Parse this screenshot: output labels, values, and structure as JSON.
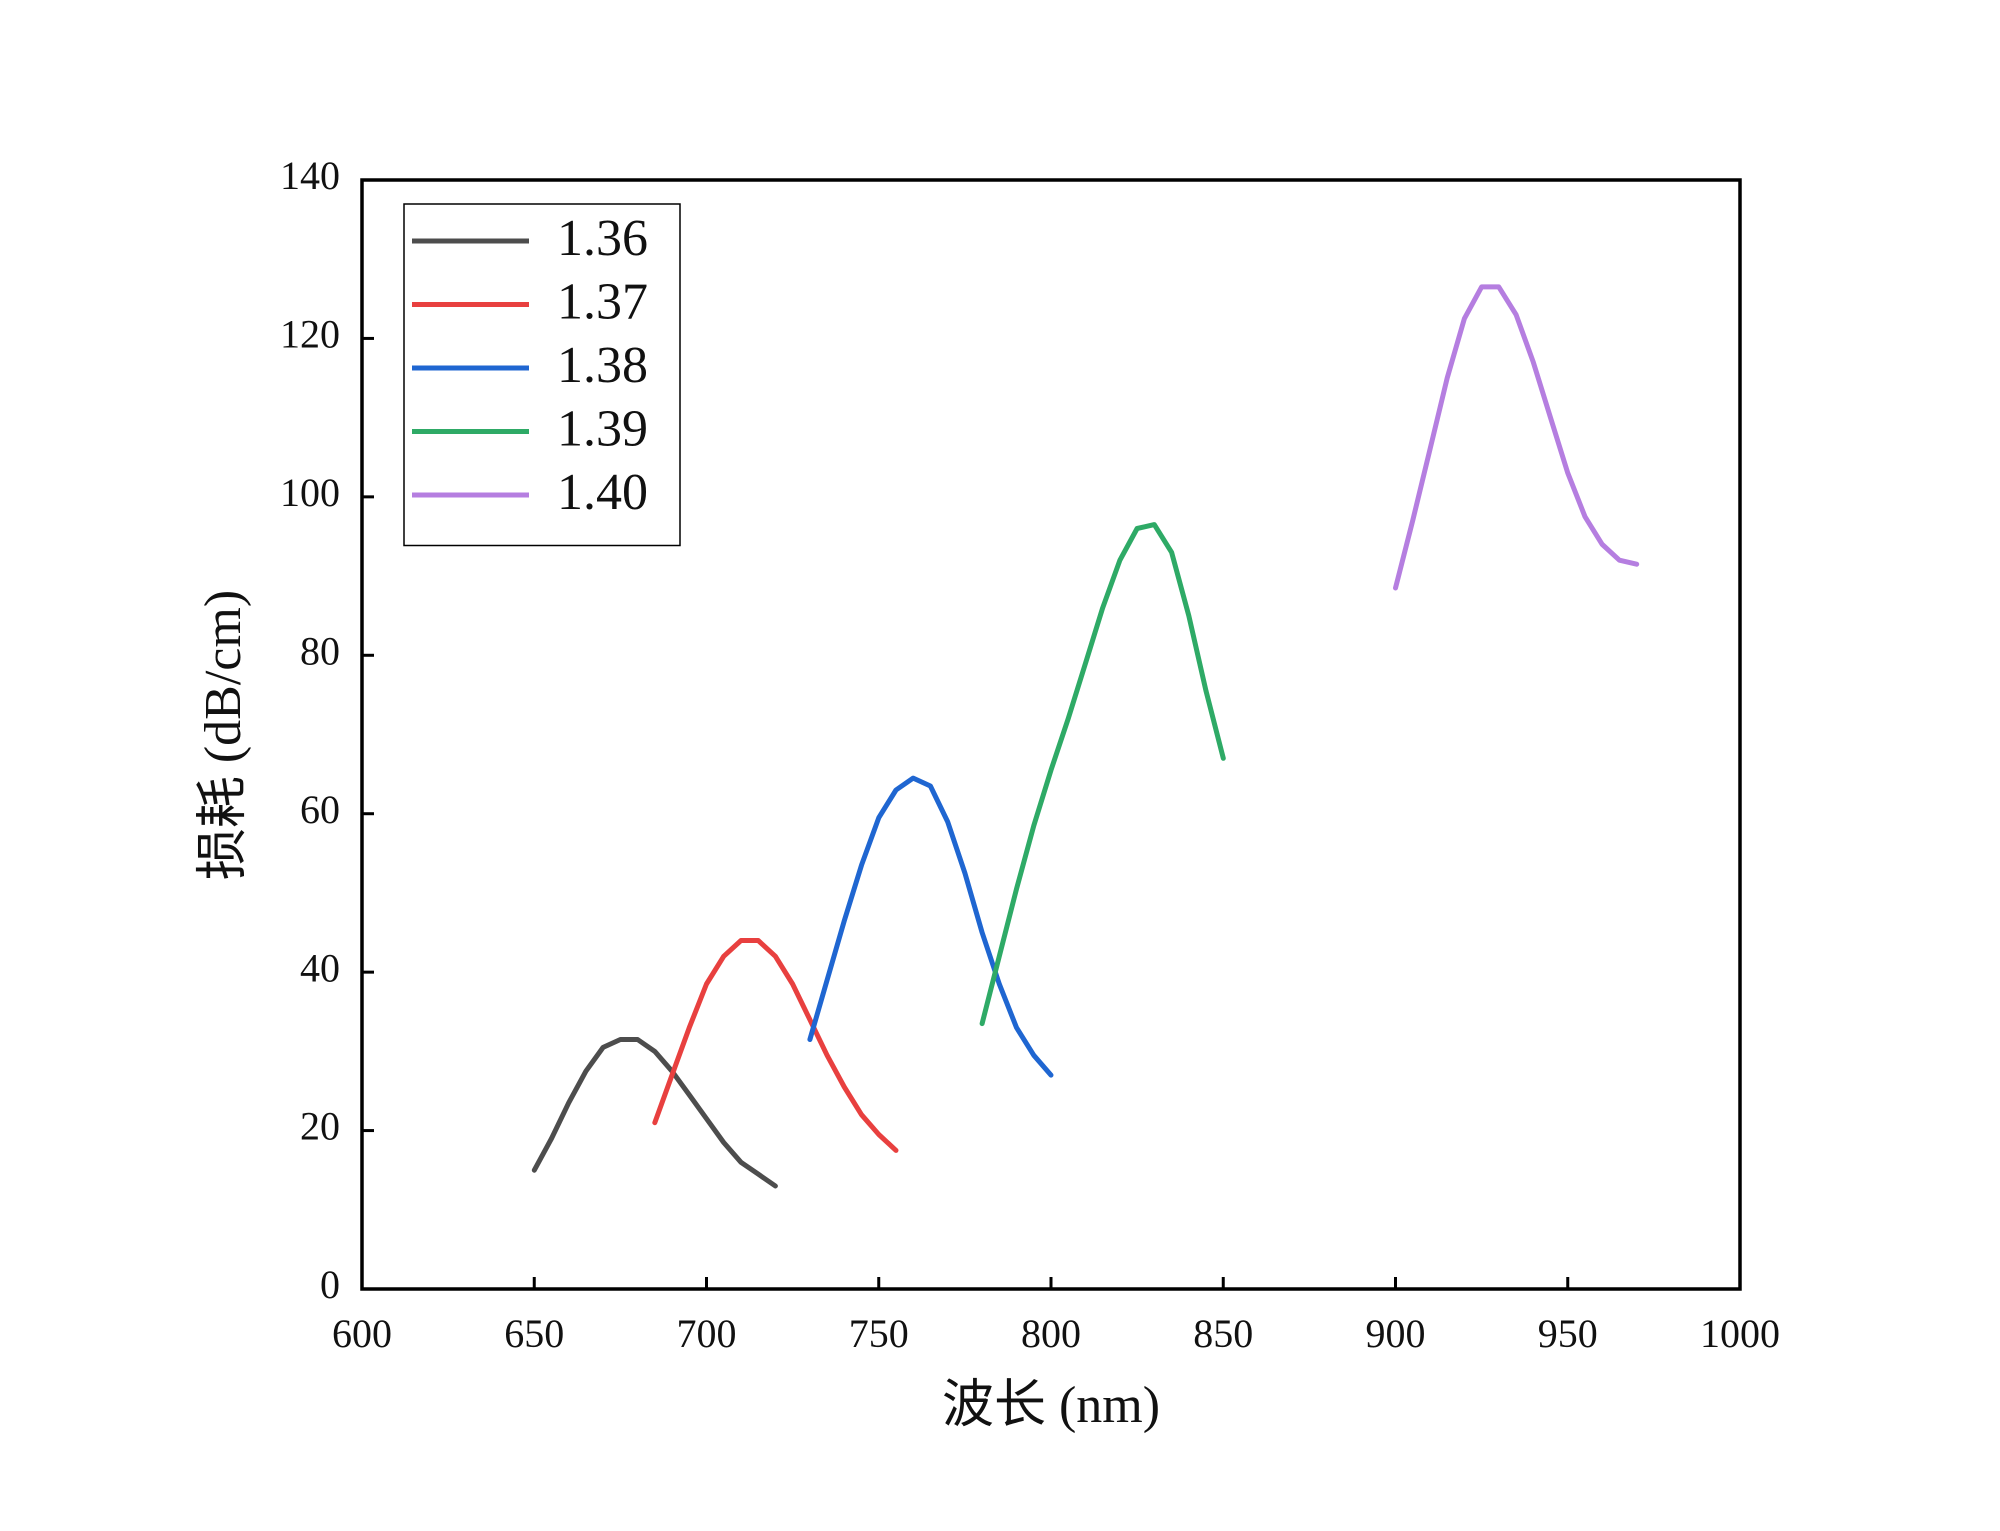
{
  "chart_data": {
    "type": "line",
    "xlabel": "波长 (nm)",
    "ylabel": "损耗 (dB/cm)",
    "xlim": [
      600,
      1000
    ],
    "xticks": [
      600,
      650,
      700,
      750,
      800,
      850,
      900,
      950,
      1000
    ],
    "ylim": [
      0,
      140
    ],
    "yticks": [
      0,
      20,
      40,
      60,
      80,
      100,
      120,
      140
    ],
    "legend": "upper left",
    "series": [
      {
        "name": "1.36",
        "color": "#4d4d4d",
        "x": [
          650,
          655,
          660,
          665,
          670,
          675,
          680,
          685,
          690,
          695,
          700,
          705,
          710,
          715,
          720
        ],
        "values": [
          15,
          19,
          23.5,
          27.5,
          30.5,
          31.5,
          31.5,
          30,
          27.5,
          24.5,
          21.5,
          18.5,
          16,
          14.5,
          13
        ]
      },
      {
        "name": "1.37",
        "color": "#e8403f",
        "x": [
          685,
          690,
          695,
          700,
          705,
          710,
          715,
          720,
          725,
          730,
          735,
          740,
          745,
          750,
          755
        ],
        "values": [
          21,
          27,
          33,
          38.5,
          42,
          44,
          44,
          42,
          38.5,
          34,
          29.5,
          25.5,
          22,
          19.5,
          17.5
        ]
      },
      {
        "name": "1.38",
        "color": "#1f66d1",
        "x": [
          730,
          735,
          740,
          745,
          750,
          755,
          760,
          765,
          770,
          775,
          780,
          785,
          790,
          795,
          800
        ],
        "values": [
          31.5,
          39,
          46.5,
          53.5,
          59.5,
          63,
          64.5,
          63.5,
          59,
          52.5,
          45,
          38.5,
          33,
          29.5,
          27
        ]
      },
      {
        "name": "1.39",
        "color": "#2eaa66",
        "x": [
          780,
          785,
          790,
          795,
          800,
          805,
          810,
          815,
          820,
          825,
          830,
          835,
          840,
          845,
          850
        ],
        "values": [
          33.5,
          42,
          50.5,
          58.5,
          65.5,
          72,
          79,
          86,
          92,
          96,
          96.5,
          93,
          85,
          75.5,
          67
        ]
      },
      {
        "name": "1.40",
        "color": "#b57ee0",
        "x": [
          900,
          905,
          910,
          915,
          920,
          925,
          930,
          935,
          940,
          945,
          950,
          955,
          960,
          965,
          970
        ],
        "values": [
          88.5,
          97,
          106,
          115,
          122.5,
          126.5,
          126.5,
          123,
          117,
          110,
          103,
          97.5,
          94,
          92,
          91.5
        ]
      }
    ]
  }
}
